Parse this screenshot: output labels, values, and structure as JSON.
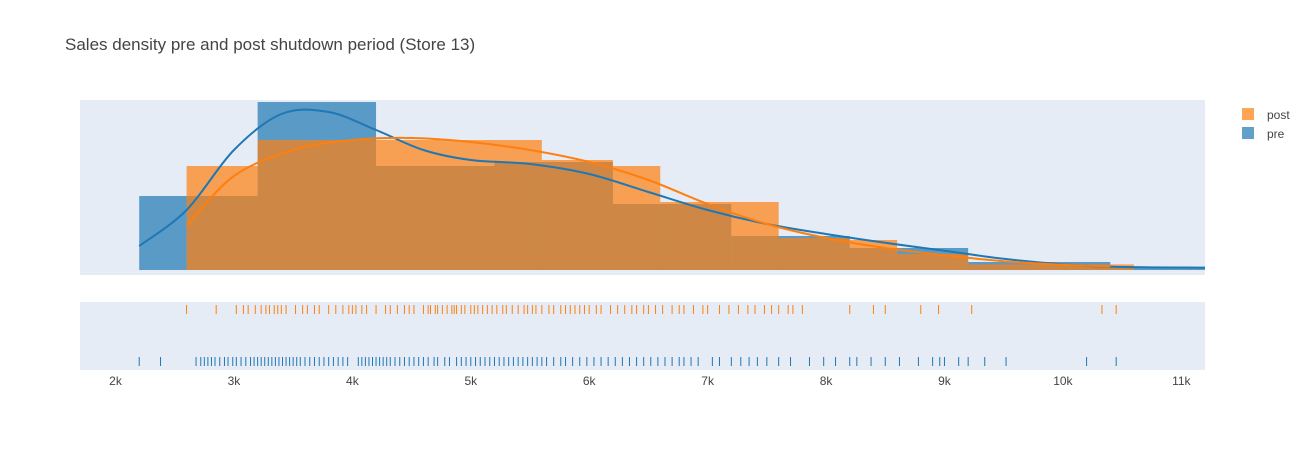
{
  "chart_data": {
    "type": "histogram_density_rug",
    "title": "Sales density pre and post shutdown period (Store 13)",
    "xlabel": "",
    "ylabel": "",
    "xlim": [
      1700,
      11200
    ],
    "x_ticks": [
      2000,
      3000,
      4000,
      5000,
      6000,
      7000,
      8000,
      9000,
      10000,
      11000
    ],
    "x_tick_labels": [
      "2k",
      "3k",
      "4k",
      "5k",
      "6k",
      "7k",
      "8k",
      "9k",
      "10k",
      "11k"
    ],
    "density_ylim": [
      0,
      0.00042
    ],
    "legend": {
      "position": "top-right",
      "entries": [
        "post",
        "pre"
      ]
    },
    "grid": false,
    "series": [
      {
        "name": "post",
        "color": "#ff7f0e",
        "hist_bins": [
          [
            2600,
            3200,
            0.00026
          ],
          [
            3200,
            4200,
            0.000325
          ],
          [
            4200,
            5600,
            0.000325
          ],
          [
            5600,
            6200,
            0.000275
          ],
          [
            6200,
            6600,
            0.00026
          ],
          [
            6600,
            7200,
            0.00017
          ],
          [
            7200,
            7600,
            0.00017
          ],
          [
            7600,
            8200,
            8e-05
          ],
          [
            8200,
            8600,
            7.5e-05
          ],
          [
            8600,
            9200,
            4e-05
          ],
          [
            9200,
            10600,
            1.4e-05
          ]
        ],
        "kde": [
          [
            2600,
            0.00011
          ],
          [
            3000,
            0.000235
          ],
          [
            3500,
            0.0003
          ],
          [
            4000,
            0.000325
          ],
          [
            4500,
            0.00033
          ],
          [
            5000,
            0.00032
          ],
          [
            5500,
            0.0003
          ],
          [
            6000,
            0.00027
          ],
          [
            6500,
            0.000225
          ],
          [
            7000,
            0.000165
          ],
          [
            7500,
            0.000115
          ],
          [
            8000,
            8e-05
          ],
          [
            8500,
            5.5e-05
          ],
          [
            9000,
            3.7e-05
          ],
          [
            9500,
            2.2e-05
          ],
          [
            10000,
            1.3e-05
          ],
          [
            10400,
            9e-06
          ]
        ],
        "rug": [
          2600,
          2850,
          3020,
          3080,
          3120,
          3180,
          3230,
          3270,
          3300,
          3340,
          3370,
          3400,
          3440,
          3520,
          3580,
          3620,
          3680,
          3720,
          3800,
          3860,
          3920,
          3970,
          4000,
          4030,
          4080,
          4120,
          4200,
          4280,
          4320,
          4380,
          4440,
          4480,
          4520,
          4600,
          4640,
          4660,
          4700,
          4720,
          4760,
          4800,
          4840,
          4860,
          4880,
          4920,
          4950,
          5000,
          5030,
          5060,
          5100,
          5140,
          5180,
          5220,
          5270,
          5300,
          5350,
          5400,
          5450,
          5480,
          5520,
          5550,
          5600,
          5660,
          5700,
          5760,
          5800,
          5840,
          5880,
          5920,
          5960,
          6000,
          6060,
          6100,
          6180,
          6240,
          6300,
          6360,
          6400,
          6460,
          6500,
          6560,
          6620,
          6700,
          6760,
          6800,
          6880,
          6960,
          7000,
          7100,
          7180,
          7260,
          7340,
          7400,
          7480,
          7540,
          7600,
          7680,
          7720,
          7800,
          8200,
          8400,
          8500,
          8800,
          8950,
          9230,
          10330,
          10450
        ]
      },
      {
        "name": "pre",
        "color": "#1f77b4",
        "hist_bins": [
          [
            2200,
            2600,
            0.000185
          ],
          [
            2600,
            3200,
            0.000185
          ],
          [
            3200,
            4200,
            0.00042
          ],
          [
            4200,
            5200,
            0.00026
          ],
          [
            5200,
            6200,
            0.00027
          ],
          [
            6200,
            7200,
            0.000165
          ],
          [
            7200,
            8200,
            8.5e-05
          ],
          [
            8200,
            8600,
            5.5e-05
          ],
          [
            8600,
            9200,
            5.5e-05
          ],
          [
            9200,
            10400,
            2e-05
          ],
          [
            10400,
            11200,
            5e-06
          ]
        ],
        "kde": [
          [
            2200,
            6e-05
          ],
          [
            2600,
            0.00015
          ],
          [
            3000,
            0.0003
          ],
          [
            3400,
            0.00039
          ],
          [
            3800,
            0.000395
          ],
          [
            4200,
            0.00035
          ],
          [
            4600,
            0.0003
          ],
          [
            5000,
            0.000275
          ],
          [
            5500,
            0.000265
          ],
          [
            6000,
            0.00024
          ],
          [
            6500,
            0.000195
          ],
          [
            7000,
            0.00015
          ],
          [
            7500,
            0.000115
          ],
          [
            8000,
            9e-05
          ],
          [
            8500,
            6.8e-05
          ],
          [
            9000,
            4.8e-05
          ],
          [
            9500,
            2.8e-05
          ],
          [
            10000,
            1.4e-05
          ],
          [
            10400,
            8e-06
          ],
          [
            11200,
            6e-06
          ]
        ],
        "rug": [
          2200,
          2380,
          2680,
          2720,
          2750,
          2780,
          2810,
          2840,
          2880,
          2920,
          2950,
          2990,
          3020,
          3060,
          3100,
          3140,
          3170,
          3200,
          3230,
          3260,
          3290,
          3320,
          3350,
          3380,
          3410,
          3440,
          3470,
          3500,
          3530,
          3560,
          3600,
          3640,
          3680,
          3720,
          3760,
          3800,
          3840,
          3880,
          3920,
          3960,
          4050,
          4080,
          4110,
          4140,
          4170,
          4200,
          4230,
          4260,
          4290,
          4320,
          4360,
          4400,
          4440,
          4480,
          4520,
          4560,
          4600,
          4640,
          4690,
          4720,
          4780,
          4820,
          4880,
          4920,
          4960,
          5000,
          5040,
          5080,
          5120,
          5160,
          5200,
          5240,
          5280,
          5320,
          5360,
          5400,
          5440,
          5480,
          5520,
          5560,
          5600,
          5640,
          5700,
          5760,
          5800,
          5860,
          5920,
          5980,
          6040,
          6100,
          6160,
          6220,
          6280,
          6340,
          6400,
          6460,
          6520,
          6580,
          6640,
          6700,
          6760,
          6800,
          6860,
          6920,
          7040,
          7100,
          7200,
          7280,
          7350,
          7420,
          7500,
          7600,
          7700,
          7860,
          7980,
          8080,
          8200,
          8260,
          8380,
          8500,
          8620,
          8780,
          8900,
          8960,
          9000,
          9120,
          9200,
          9340,
          9520,
          10200,
          10450
        ]
      }
    ]
  }
}
